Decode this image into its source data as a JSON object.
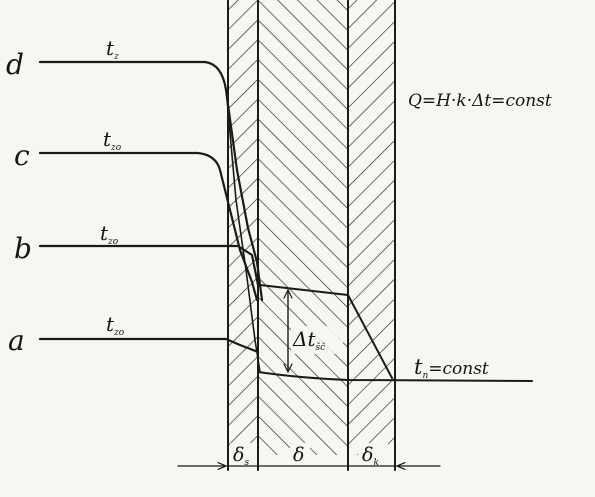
{
  "curves": [
    {
      "id": "d",
      "label": "d",
      "symbol": "t",
      "subscript": "z"
    },
    {
      "id": "c",
      "label": "c",
      "symbol": "t",
      "subscript": "zo"
    },
    {
      "id": "b",
      "label": "b",
      "symbol": "t",
      "subscript": "zo"
    },
    {
      "id": "a",
      "label": "a",
      "symbol": "t",
      "subscript": "zo"
    }
  ],
  "equation": "Q=H·k·Δt=const",
  "delta_label": {
    "symbol": "Δt",
    "subscript": "šč"
  },
  "outside_label": {
    "symbol": "t",
    "subscript": "n",
    "suffix": "=const"
  },
  "dimensions": [
    {
      "symbol": "δ",
      "subscript": "s"
    },
    {
      "symbol": "δ",
      "subscript": ""
    },
    {
      "symbol": "δ",
      "subscript": "k"
    }
  ]
}
